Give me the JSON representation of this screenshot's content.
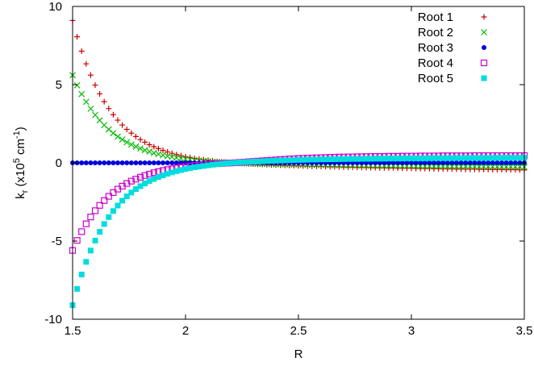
{
  "chart_data": {
    "type": "scatter",
    "xlabel": "R",
    "ylabel": {
      "base": "k",
      "subscript": "r",
      "open": " (x10",
      "exp1": "5",
      "mid": " cm",
      "exp2": "-1",
      "close": ")"
    },
    "xlim": [
      1.5,
      3.5
    ],
    "ylim": [
      -10,
      10
    ],
    "xticks": [
      1.5,
      2,
      2.5,
      3,
      3.5
    ],
    "xtick_labels": [
      "1.5",
      "2",
      "2.5",
      "3",
      "3.5"
    ],
    "yticks": [
      -10,
      -5,
      0,
      5,
      10
    ],
    "ytick_labels": [
      "-10",
      "-5",
      "0",
      "5",
      "10"
    ],
    "grid": false,
    "legend_position": "top-right",
    "x": [
      1.5,
      1.52,
      1.54,
      1.56,
      1.58,
      1.6,
      1.62,
      1.64,
      1.66,
      1.68,
      1.7,
      1.72,
      1.74,
      1.76,
      1.78,
      1.8,
      1.82,
      1.84,
      1.86,
      1.88,
      1.9,
      1.92,
      1.94,
      1.96,
      1.98,
      2.0,
      2.02,
      2.04,
      2.06,
      2.08,
      2.1,
      2.12,
      2.14,
      2.16,
      2.18,
      2.2,
      2.22,
      2.24,
      2.26,
      2.28,
      2.3,
      2.32,
      2.34,
      2.36,
      2.38,
      2.4,
      2.42,
      2.44,
      2.46,
      2.48,
      2.5,
      2.52,
      2.54,
      2.56,
      2.58,
      2.6,
      2.62,
      2.64,
      2.66,
      2.68,
      2.7,
      2.72,
      2.74,
      2.76,
      2.78,
      2.8,
      2.82,
      2.84,
      2.86,
      2.88,
      2.9,
      2.92,
      2.94,
      2.96,
      2.98,
      3.0,
      3.02,
      3.04,
      3.06,
      3.08,
      3.1,
      3.12,
      3.14,
      3.16,
      3.18,
      3.2,
      3.22,
      3.24,
      3.26,
      3.28,
      3.3,
      3.32,
      3.34,
      3.36,
      3.38,
      3.4,
      3.42,
      3.44,
      3.46,
      3.48,
      3.5
    ],
    "series": [
      {
        "name": "Root 1",
        "color": "#cc0000",
        "marker": "plus",
        "values": [
          9.1,
          8.06,
          7.14,
          6.33,
          5.61,
          4.97,
          4.41,
          3.91,
          3.47,
          3.08,
          2.73,
          2.42,
          2.14,
          1.9,
          1.68,
          1.49,
          1.32,
          1.16,
          1.03,
          0.91,
          0.8,
          0.7,
          0.61,
          0.53,
          0.46,
          0.39,
          0.34,
          0.28,
          0.24,
          0.2,
          0.16,
          0.12,
          0.09,
          0.06,
          0.03,
          0.01,
          -0.01,
          -0.03,
          -0.05,
          -0.06,
          -0.08,
          -0.09,
          -0.1,
          -0.12,
          -0.13,
          -0.14,
          -0.15,
          -0.16,
          -0.17,
          -0.18,
          -0.19,
          -0.2,
          -0.21,
          -0.21,
          -0.22,
          -0.23,
          -0.24,
          -0.25,
          -0.25,
          -0.26,
          -0.27,
          -0.28,
          -0.28,
          -0.29,
          -0.29,
          -0.3,
          -0.31,
          -0.31,
          -0.32,
          -0.32,
          -0.33,
          -0.33,
          -0.34,
          -0.34,
          -0.35,
          -0.35,
          -0.36,
          -0.36,
          -0.37,
          -0.37,
          -0.38,
          -0.38,
          -0.39,
          -0.39,
          -0.39,
          -0.4,
          -0.4,
          -0.41,
          -0.41,
          -0.41,
          -0.42,
          -0.42,
          -0.42,
          -0.43,
          -0.43,
          -0.43,
          -0.44,
          -0.44,
          -0.44,
          -0.45,
          -0.45
        ]
      },
      {
        "name": "Root 2",
        "color": "#00bb00",
        "marker": "cross",
        "values": [
          5.6,
          4.96,
          4.4,
          3.9,
          3.46,
          3.06,
          2.72,
          2.41,
          2.14,
          1.9,
          1.68,
          1.49,
          1.32,
          1.17,
          1.04,
          0.92,
          0.81,
          0.72,
          0.63,
          0.56,
          0.49,
          0.43,
          0.38,
          0.33,
          0.28,
          0.24,
          0.21,
          0.17,
          0.15,
          0.12,
          0.1,
          0.07,
          0.05,
          0.04,
          0.02,
          0.01,
          -0.01,
          -0.02,
          -0.03,
          -0.04,
          -0.05,
          -0.06,
          -0.07,
          -0.07,
          -0.08,
          -0.09,
          -0.09,
          -0.1,
          -0.1,
          -0.11,
          -0.11,
          -0.12,
          -0.12,
          -0.13,
          -0.13,
          -0.14,
          -0.14,
          -0.15,
          -0.15,
          -0.15,
          -0.16,
          -0.16,
          -0.16,
          -0.17,
          -0.17,
          -0.17,
          -0.18,
          -0.18,
          -0.18,
          -0.19,
          -0.19,
          -0.19,
          -0.2,
          -0.2,
          -0.2,
          -0.2,
          -0.21,
          -0.21,
          -0.21,
          -0.21,
          -0.22,
          -0.22,
          -0.22,
          -0.22,
          -0.23,
          -0.23,
          -0.23,
          -0.23,
          -0.23,
          -0.24,
          -0.24,
          -0.24,
          -0.24,
          -0.24,
          -0.25,
          -0.25,
          -0.25,
          -0.25,
          -0.25,
          -0.25,
          -0.26
        ]
      },
      {
        "name": "Root 3",
        "color": "#0000dd",
        "marker": "dot",
        "values": [
          0,
          0,
          0,
          0,
          0,
          0,
          0,
          0,
          0,
          0,
          0,
          0,
          0,
          0,
          0,
          0,
          0,
          0,
          0,
          0,
          0,
          0,
          0,
          0,
          0,
          0,
          0,
          0,
          0,
          0,
          0,
          0,
          0,
          0,
          0,
          0,
          0,
          0,
          0,
          0,
          0,
          0,
          0,
          0,
          0,
          0,
          0,
          0,
          0,
          0,
          0,
          0,
          0,
          0,
          0,
          0,
          0,
          0,
          0,
          0,
          0,
          0,
          0,
          0,
          0,
          0,
          0,
          0,
          0,
          0,
          0,
          0,
          0,
          0,
          0,
          0,
          0,
          0,
          0,
          0,
          0,
          0,
          0,
          0,
          0,
          0,
          0,
          0,
          0,
          0,
          0,
          0,
          0,
          0,
          0,
          0,
          0,
          0,
          0,
          0,
          0
        ]
      },
      {
        "name": "Root 4",
        "color": "#cc00cc",
        "marker": "open-square",
        "values": [
          -5.6,
          -4.96,
          -4.4,
          -3.9,
          -3.46,
          -3.06,
          -2.72,
          -2.41,
          -2.14,
          -1.9,
          -1.68,
          -1.49,
          -1.32,
          -1.17,
          -1.04,
          -0.92,
          -0.81,
          -0.72,
          -0.63,
          -0.56,
          -0.49,
          -0.43,
          -0.38,
          -0.33,
          -0.28,
          -0.24,
          -0.21,
          -0.17,
          -0.15,
          -0.12,
          -0.1,
          -0.07,
          -0.05,
          -0.04,
          -0.02,
          -0.01,
          0.01,
          0.03,
          0.05,
          0.07,
          0.09,
          0.11,
          0.13,
          0.15,
          0.17,
          0.19,
          0.21,
          0.23,
          0.25,
          0.26,
          0.28,
          0.29,
          0.3,
          0.31,
          0.32,
          0.33,
          0.34,
          0.35,
          0.36,
          0.37,
          0.37,
          0.38,
          0.38,
          0.39,
          0.39,
          0.4,
          0.4,
          0.41,
          0.41,
          0.41,
          0.42,
          0.42,
          0.42,
          0.43,
          0.43,
          0.43,
          0.43,
          0.44,
          0.44,
          0.44,
          0.44,
          0.44,
          0.45,
          0.45,
          0.45,
          0.45,
          0.45,
          0.45,
          0.45,
          0.46,
          0.46,
          0.46,
          0.46,
          0.46,
          0.46,
          0.46,
          0.46,
          0.46,
          0.46,
          0.46,
          0.46
        ]
      },
      {
        "name": "Root 5",
        "color": "#00dddd",
        "marker": "filled-square",
        "values": [
          -9.1,
          -8.06,
          -7.14,
          -6.33,
          -5.61,
          -4.97,
          -4.41,
          -3.91,
          -3.47,
          -3.08,
          -2.73,
          -2.42,
          -2.14,
          -1.9,
          -1.68,
          -1.49,
          -1.32,
          -1.16,
          -1.03,
          -0.91,
          -0.8,
          -0.7,
          -0.61,
          -0.53,
          -0.46,
          -0.39,
          -0.34,
          -0.28,
          -0.24,
          -0.2,
          -0.16,
          -0.12,
          -0.09,
          -0.06,
          -0.03,
          -0.01,
          0.01,
          0.03,
          0.05,
          0.06,
          0.08,
          0.09,
          0.1,
          0.12,
          0.13,
          0.14,
          0.15,
          0.16,
          0.17,
          0.18,
          0.19,
          0.19,
          0.2,
          0.21,
          0.21,
          0.22,
          0.22,
          0.23,
          0.23,
          0.24,
          0.24,
          0.25,
          0.25,
          0.25,
          0.26,
          0.26,
          0.26,
          0.27,
          0.27,
          0.27,
          0.28,
          0.28,
          0.28,
          0.28,
          0.29,
          0.29,
          0.29,
          0.29,
          0.29,
          0.3,
          0.3,
          0.3,
          0.3,
          0.3,
          0.3,
          0.31,
          0.31,
          0.31,
          0.31,
          0.31,
          0.31,
          0.31,
          0.31,
          0.32,
          0.32,
          0.32,
          0.32,
          0.32,
          0.32,
          0.32,
          0.32
        ]
      }
    ]
  }
}
